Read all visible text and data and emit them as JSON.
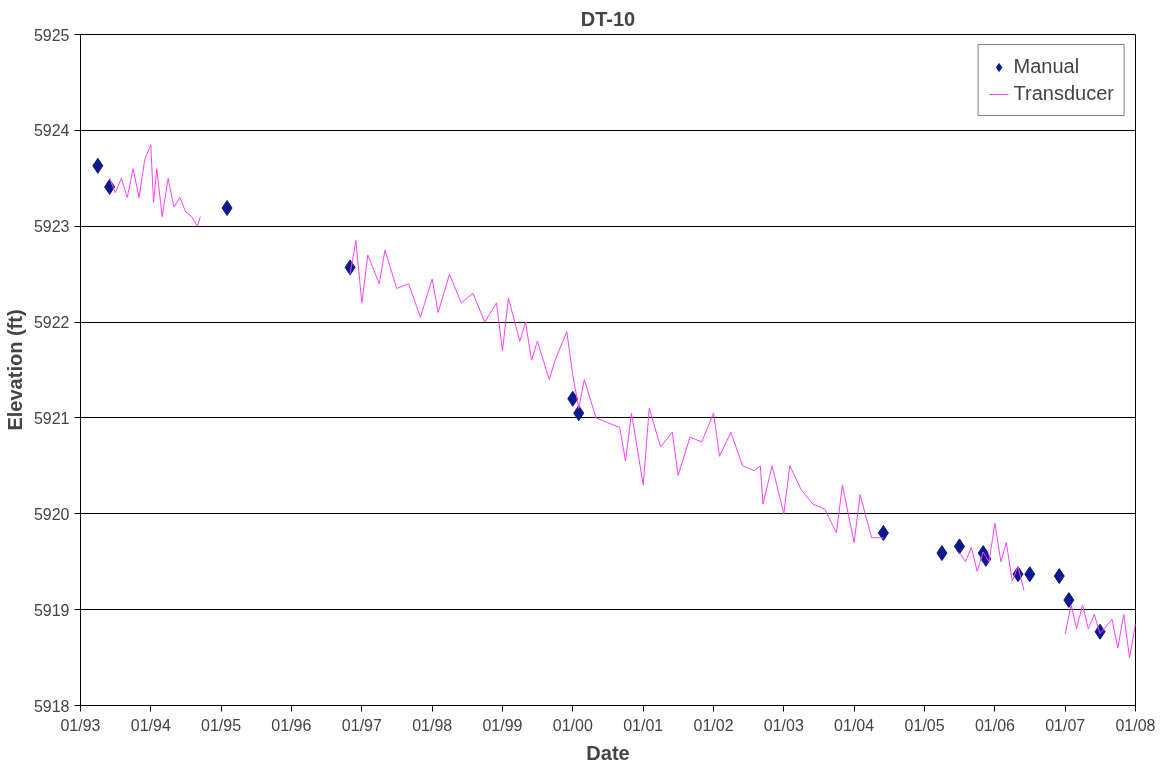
{
  "chart_data": {
    "type": "scatter",
    "title": "DT-10",
    "xlabel": "Date",
    "ylabel": "Elevation (ft)",
    "xlim": [
      "1993-01",
      "2008-01"
    ],
    "xticks": [
      {
        "value": "1993-01",
        "label": "01/93"
      },
      {
        "value": "1994-01",
        "label": "01/94"
      },
      {
        "value": "1995-01",
        "label": "01/95"
      },
      {
        "value": "1996-01",
        "label": "01/96"
      },
      {
        "value": "1997-01",
        "label": "01/97"
      },
      {
        "value": "1998-01",
        "label": "01/98"
      },
      {
        "value": "1999-01",
        "label": "01/99"
      },
      {
        "value": "2000-01",
        "label": "01/00"
      },
      {
        "value": "2001-01",
        "label": "01/01"
      },
      {
        "value": "2002-01",
        "label": "01/02"
      },
      {
        "value": "2003-01",
        "label": "01/03"
      },
      {
        "value": "2004-01",
        "label": "01/04"
      },
      {
        "value": "2005-01",
        "label": "01/05"
      },
      {
        "value": "2006-01",
        "label": "01/06"
      },
      {
        "value": "2007-01",
        "label": "01/07"
      },
      {
        "value": "2008-01",
        "label": "01/08"
      }
    ],
    "ylim": [
      5918,
      5925
    ],
    "yticks": [
      5918,
      5919,
      5920,
      5921,
      5922,
      5923,
      5924,
      5925
    ],
    "grid": "y",
    "legend": "top right",
    "series": [
      {
        "name": "Manual",
        "marker": "diamond",
        "color": "#0a1a8c",
        "x": [
          "1993-04",
          "1993-06",
          "1995-02",
          "1996-11",
          "2000-01",
          "2000-02",
          "2004-06",
          "2005-04",
          "2005-07",
          "2005-11",
          "2005-11-15",
          "2006-05",
          "2006-07",
          "2006-12",
          "2007-01-20",
          "2007-07"
        ],
        "values": [
          5923.63,
          5923.41,
          5923.19,
          5922.57,
          5921.2,
          5921.05,
          5919.8,
          5919.59,
          5919.66,
          5919.59,
          5919.53,
          5919.37,
          5919.37,
          5919.35,
          5919.1,
          5918.77
        ]
      },
      {
        "name": "Transducer",
        "type": "line",
        "line_style": "solid",
        "color": "#ff40ff",
        "x": [
          "1993-06",
          "1993-07",
          "1993-08",
          "1993-09",
          "1993-10",
          "1993-11",
          "1993-12",
          "1994-01",
          "1994-01-15",
          "1994-02",
          "1994-03",
          "1994-04",
          "1994-05",
          "1994-06",
          "1994-07",
          "1994-08",
          "1994-09",
          "1994-09-15",
          "1995-10",
          "1996-11",
          "1996-12",
          "1997-01",
          "1997-02",
          "1997-04",
          "1997-05",
          "1997-07",
          "1997-09",
          "1997-11",
          "1998-01",
          "1998-02",
          "1998-04",
          "1998-06",
          "1998-08",
          "1998-10",
          "1998-12",
          "1999-01",
          "1999-02",
          "1999-04",
          "1999-05",
          "1999-06",
          "1999-07",
          "1999-09",
          "1999-10",
          "1999-12",
          "2000-01",
          "2000-02",
          "2000-03",
          "2000-05",
          "2000-07",
          "2000-09",
          "2000-10",
          "2000-11",
          "2001-01",
          "2001-02",
          "2001-04",
          "2001-06",
          "2001-07",
          "2001-09",
          "2001-11",
          "2002-01",
          "2002-02",
          "2002-04",
          "2002-06",
          "2002-08",
          "2002-09",
          "2002-09-15",
          "2002-11",
          "2003-01",
          "2003-02",
          "2003-04",
          "2003-06",
          "2003-08",
          "2003-10",
          "2003-11",
          "2004-01",
          "2004-02",
          "2004-04",
          "2004-06",
          "2004-12",
          "2005-07",
          "2005-08",
          "2005-09",
          "2005-10",
          "2005-11",
          "2005-12",
          "2006-01",
          "2006-02",
          "2006-03",
          "2006-04",
          "2006-05",
          "2006-06",
          "2006-09",
          "2007-01",
          "2007-02",
          "2007-03",
          "2007-04",
          "2007-05",
          "2007-06",
          "2007-07",
          "2007-09",
          "2007-10",
          "2007-11",
          "2007-12",
          "2008-01"
        ],
        "values": [
          5923.5,
          5923.35,
          5923.5,
          5923.3,
          5923.6,
          5923.3,
          5923.7,
          5923.85,
          5923.25,
          5923.6,
          5923.1,
          5923.5,
          5923.2,
          5923.3,
          5923.15,
          5923.1,
          5923.0,
          5923.1,
          null,
          5922.5,
          5922.85,
          5922.2,
          5922.7,
          5922.4,
          5922.75,
          5922.35,
          5922.4,
          5922.05,
          5922.45,
          5922.1,
          5922.5,
          5922.2,
          5922.3,
          5922.0,
          5922.2,
          5921.7,
          5922.25,
          5921.8,
          5922.0,
          5921.6,
          5921.8,
          5921.4,
          5921.6,
          5921.9,
          5921.45,
          5921.1,
          5921.4,
          5921.0,
          5920.95,
          5920.9,
          5920.55,
          5921.05,
          5920.3,
          5921.1,
          5920.7,
          5920.85,
          5920.4,
          5920.8,
          5920.75,
          5921.05,
          5920.6,
          5920.85,
          5920.5,
          5920.45,
          5920.5,
          5920.1,
          5920.5,
          5920.0,
          5920.5,
          5920.25,
          5920.1,
          5920.05,
          5919.8,
          5920.3,
          5919.7,
          5920.2,
          5919.75,
          5919.75,
          null,
          5919.6,
          5919.5,
          5919.65,
          5919.4,
          5919.6,
          5919.5,
          5919.9,
          5919.5,
          5919.7,
          5919.3,
          5919.45,
          5919.2,
          null,
          5918.75,
          5919.05,
          5918.8,
          5919.05,
          5918.8,
          5918.95,
          5918.75,
          5918.9,
          5918.6,
          5918.95,
          5918.5,
          5918.85
        ]
      }
    ]
  }
}
